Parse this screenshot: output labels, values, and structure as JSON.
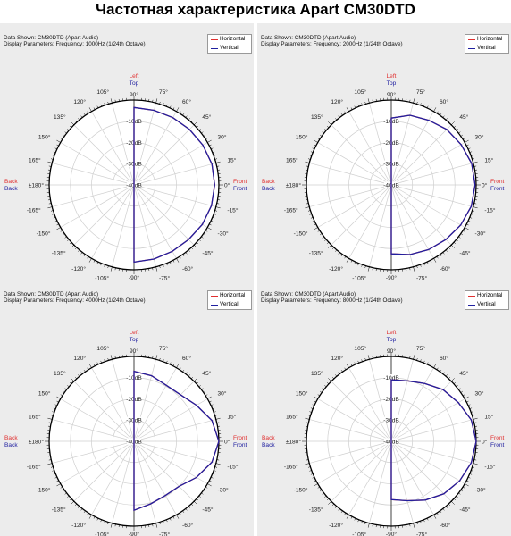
{
  "page_title": "Частотная характеристика Apart CM30DTD",
  "colors": {
    "horizontal": "#e03030",
    "vertical": "#2020a0",
    "grid": "#cfcfcf",
    "frame": "#000000"
  },
  "common": {
    "data_shown_label": "Data Shown:",
    "data_shown_value": "CM30DTD (Apart Audio)",
    "display_params_label": "Display Parameters:",
    "legend": [
      "Horizontal",
      "Vertical"
    ],
    "direction_labels": {
      "top": [
        "Left",
        "Top"
      ],
      "bottom": [
        "Right",
        "Bottom"
      ],
      "left": [
        "Back",
        "Back"
      ],
      "right": [
        "Front",
        "Front"
      ]
    },
    "ring_labels": [
      "-10dB",
      "-20dB",
      "-30dB",
      "-40dB"
    ],
    "angle_labels": [
      "0°",
      "15°",
      "30°",
      "45°",
      "60°",
      "75°",
      "90°",
      "105°",
      "120°",
      "135°",
      "150°",
      "165°",
      "±180°",
      "-165°",
      "-150°",
      "-135°",
      "-120°",
      "-105°",
      "-90°",
      "-75°",
      "-60°",
      "-45°",
      "-30°",
      "-15°"
    ]
  },
  "chart_data": [
    {
      "type": "polar",
      "params": "Frequency: 1000Hz (1/24th Octave)",
      "r_unit": "dB",
      "rlim": [
        -40,
        0
      ],
      "angle_unit": "deg",
      "series": [
        {
          "name": "Vertical",
          "angle": [
            90,
            75,
            60,
            45,
            30,
            15,
            0,
            -15,
            -30,
            -45,
            -60,
            -75,
            -90
          ],
          "values": [
            -3.5,
            -3.6,
            -3.4,
            -3.0,
            -2.5,
            -2.0,
            -2.0,
            -2.2,
            -2.8,
            -3.6,
            -3.9,
            -3.8,
            -3.6
          ]
        },
        {
          "name": "Horizontal",
          "angle": [
            90,
            75,
            60,
            45,
            30,
            15,
            0,
            -15,
            -30,
            -45,
            -60,
            -75,
            -90
          ],
          "values": [
            -3.5,
            -3.6,
            -3.4,
            -3.0,
            -2.5,
            -2.0,
            -2.0,
            -2.2,
            -2.8,
            -3.6,
            -3.9,
            -3.8,
            -3.6
          ]
        }
      ]
    },
    {
      "type": "polar",
      "params": "Frequency: 2000Hz (1/24th Octave)",
      "r_unit": "dB",
      "rlim": [
        -40,
        0
      ],
      "angle_unit": "deg",
      "series": [
        {
          "name": "Vertical",
          "angle": [
            90,
            75,
            60,
            45,
            30,
            15,
            0,
            -15,
            -30,
            -45,
            -60,
            -75,
            -90
          ],
          "values": [
            -8.5,
            -6.0,
            -4.8,
            -3.0,
            -2.0,
            -0.8,
            -0.5,
            -1.0,
            -2.2,
            -3.6,
            -4.8,
            -6.0,
            -7.5
          ]
        },
        {
          "name": "Horizontal",
          "angle": [
            90,
            75,
            60,
            45,
            30,
            15,
            0,
            -15,
            -30,
            -45,
            -60,
            -75,
            -90
          ],
          "values": [
            -8.5,
            -6.0,
            -4.8,
            -3.0,
            -2.0,
            -0.8,
            -0.5,
            -1.0,
            -2.2,
            -3.6,
            -4.8,
            -6.0,
            -7.5
          ]
        }
      ]
    },
    {
      "type": "polar",
      "params": "Frequency: 4000Hz (1/24th Octave)",
      "r_unit": "dB",
      "rlim": [
        -40,
        0
      ],
      "angle_unit": "deg",
      "series": [
        {
          "name": "Vertical",
          "angle": [
            90,
            75,
            60,
            45,
            30,
            15,
            0,
            -15,
            -30,
            -45,
            -60,
            -75,
            -90
          ],
          "values": [
            -7.0,
            -8.0,
            -9.5,
            -9.0,
            -6.0,
            -2.0,
            0.0,
            -2.0,
            -6.0,
            -10.0,
            -10.5,
            -9.5,
            -7.5
          ]
        },
        {
          "name": "Horizontal",
          "angle": [
            90,
            75,
            60,
            45,
            30,
            15,
            0,
            -15,
            -30,
            -45,
            -60,
            -75,
            -90
          ],
          "values": [
            -7.0,
            -8.0,
            -9.5,
            -9.0,
            -6.0,
            -2.0,
            0.0,
            -2.0,
            -6.0,
            -10.0,
            -10.5,
            -9.5,
            -7.5
          ]
        }
      ]
    },
    {
      "type": "polar",
      "params": "Frequency: 8000Hz (1/24th Octave)",
      "r_unit": "dB",
      "rlim": [
        -40,
        0
      ],
      "angle_unit": "deg",
      "series": [
        {
          "name": "Vertical",
          "angle": [
            90,
            75,
            60,
            45,
            30,
            15,
            0,
            -15,
            -30,
            -45,
            -60,
            -75,
            -90
          ],
          "values": [
            -11.0,
            -10.5,
            -8.5,
            -5.5,
            -3.5,
            -1.0,
            0.0,
            -1.0,
            -2.8,
            -5.0,
            -8.0,
            -11.0,
            -12.5
          ]
        },
        {
          "name": "Horizontal",
          "angle": [
            90,
            75,
            60,
            45,
            30,
            15,
            0,
            -15,
            -30,
            -45,
            -60,
            -75,
            -90
          ],
          "values": [
            -11.0,
            -10.5,
            -8.5,
            -5.5,
            -3.5,
            -1.0,
            0.0,
            -1.0,
            -2.8,
            -5.0,
            -8.0,
            -11.0,
            -12.5
          ]
        }
      ]
    }
  ]
}
